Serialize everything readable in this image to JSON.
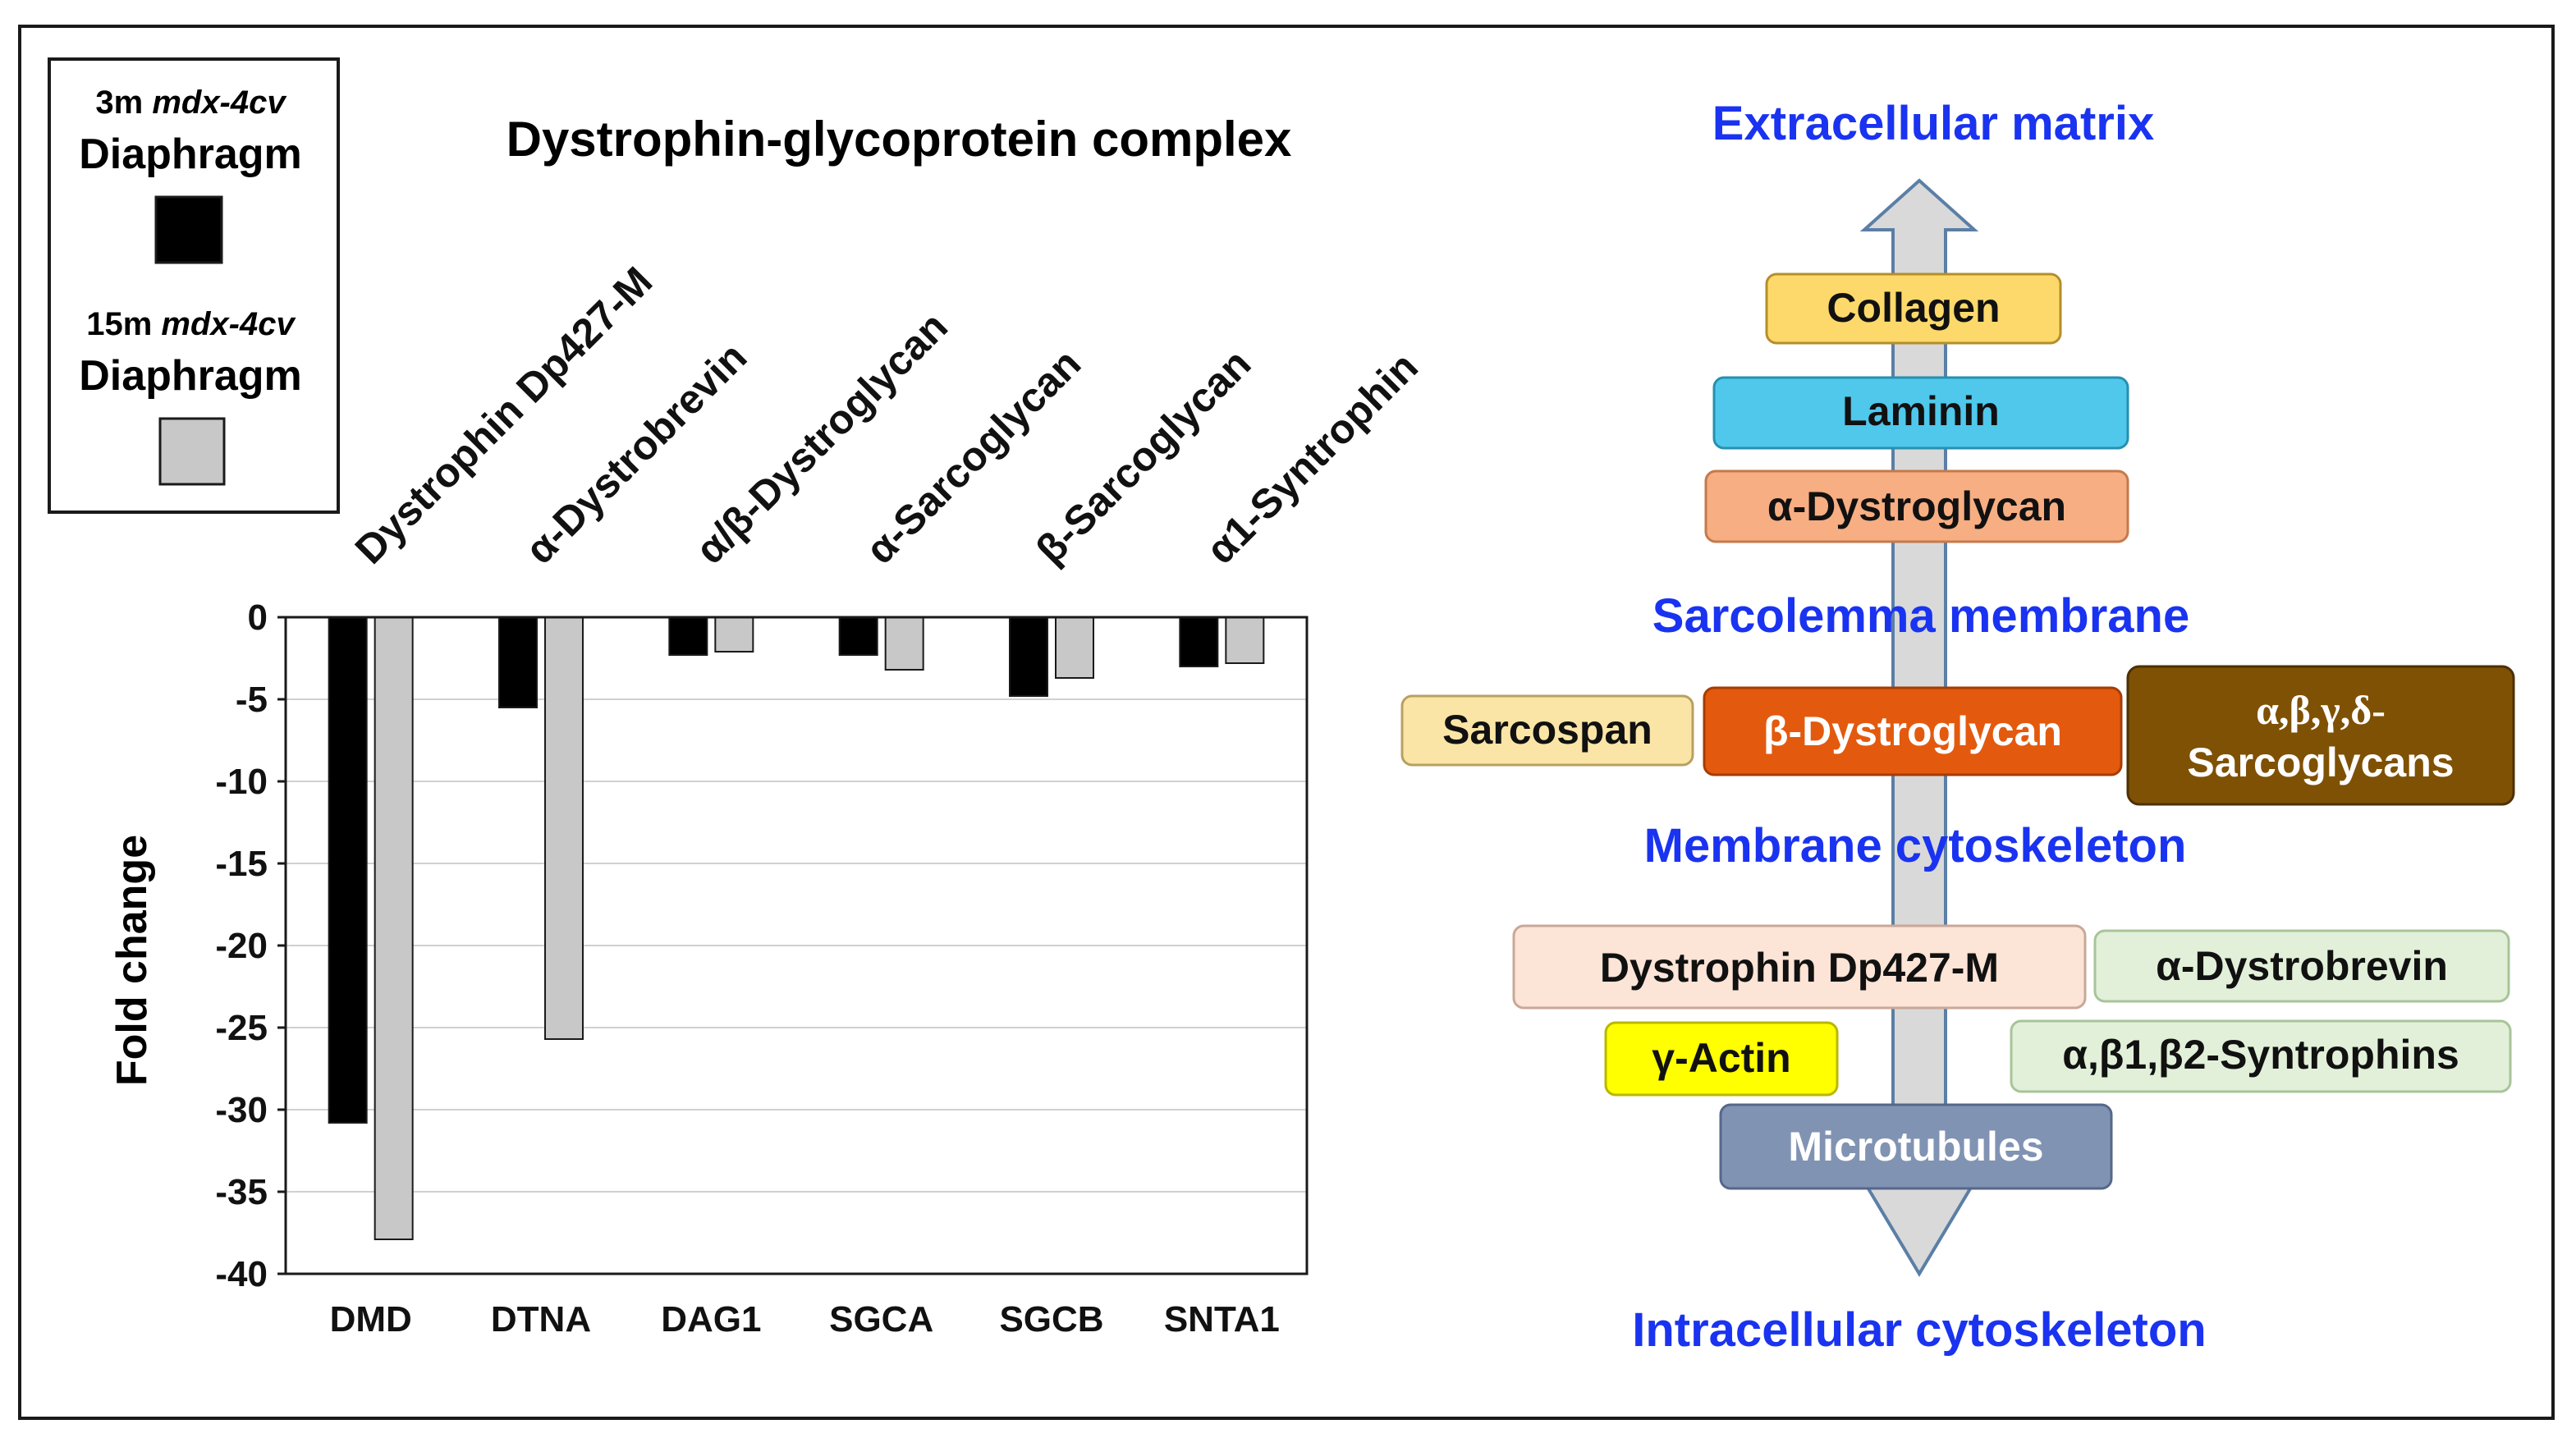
{
  "legend": {
    "entry1_prefix": "3m ",
    "entry1_italic": "mdx-4cv",
    "entry1_tissue": "Diaphragm",
    "entry1_color": "#000000",
    "entry2_prefix": "15m ",
    "entry2_italic": "mdx-4cv",
    "entry2_tissue": "Diaphragm",
    "entry2_color": "#c8c8c8"
  },
  "chart_data": {
    "type": "bar",
    "title": "Dystrophin-glycoprotein complex",
    "ylabel": "Fold change",
    "xlabel": "",
    "categories": [
      "DMD",
      "DTNA",
      "DAG1",
      "SGCA",
      "SGCB",
      "SNTA1"
    ],
    "protein_labels": [
      "Dystrophin Dp427-M",
      "α-Dystrobrevin",
      "α/β-Dystroglycan",
      "α-Sarcoglycan",
      "β-Sarcoglycan",
      "α1-Syntrophin"
    ],
    "series": [
      {
        "name": "3m mdx-4cv Diaphragm",
        "color": "#000000",
        "values": [
          -30.8,
          -5.5,
          -2.3,
          -2.3,
          -4.8,
          -3.0
        ]
      },
      {
        "name": "15m mdx-4cv Diaphragm",
        "color": "#c8c8c8",
        "values": [
          -37.9,
          -25.7,
          -2.1,
          -3.2,
          -3.7,
          -2.8
        ]
      }
    ],
    "ylim": [
      -40,
      0
    ],
    "yticks": [
      0,
      -5,
      -10,
      -15,
      -20,
      -25,
      -30,
      -35,
      -40
    ],
    "grid": true
  },
  "diagram": {
    "extracellular": "Extracellular matrix",
    "sarcolemma": "Sarcolemma membrane",
    "membrane_cyto": "Membrane cytoskeleton",
    "intracellular": "Intracellular cytoskeleton",
    "collagen": "Collagen",
    "laminin": "Laminin",
    "alpha_dg": "α-Dystroglycan",
    "sarcospan": "Sarcospan",
    "beta_dg": "β-Dystroglycan",
    "sarcoglycans_line1": "α,β,γ,δ-",
    "sarcoglycans_line2": "Sarcoglycans",
    "dystrophin": "Dystrophin Dp427-M",
    "dystrobrevin": "α-Dystrobrevin",
    "actin": "γ-Actin",
    "syntrophins": "α,β1,β2-Syntrophins",
    "microtubules": "Microtubules",
    "colors": {
      "label_blue": "#1a33f0",
      "collagen": "#fcd96a",
      "laminin": "#4fc8ec",
      "alpha_dg": "#f7ae82",
      "sarcospan": "#fbe5a6",
      "beta_dg": "#e35a0e",
      "sarcoglycans": "#7f5104",
      "dystrophin": "#fce4d6",
      "dystrobrevin": "#e2f0d9",
      "actin": "#ffff00",
      "syntrophins": "#e2f0d9",
      "microtubules": "#8093b3",
      "arrow": "#d9d9d9",
      "arrow_edge": "#5b7fa6"
    }
  }
}
